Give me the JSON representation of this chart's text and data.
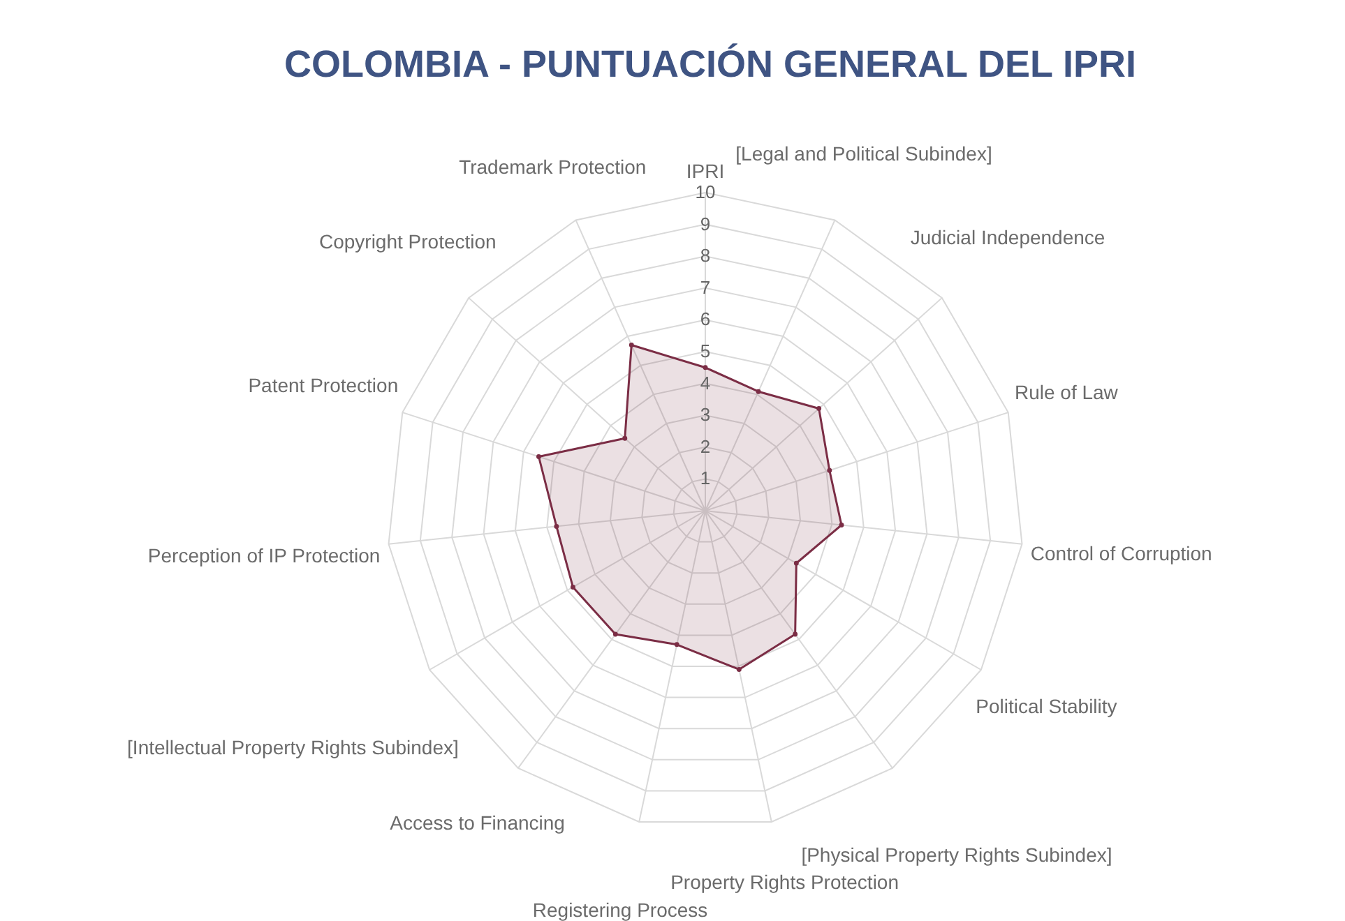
{
  "chart_data": {
    "type": "radar",
    "title": "COLOMBIA - PUNTUACIÓN GENERAL DEL IPRI",
    "categories": [
      "IPRI",
      "[Legal and Political Subindex]",
      "Judicial Independence",
      "Rule of Law",
      "Control of Corruption",
      "Political Stability",
      "[Physical Property Rights Subindex]",
      "Property Rights Protection",
      "Registering Process",
      "Access to Financing",
      "[Intellectual Property Rights Subindex]",
      "Perception of IP Protection",
      "Patent Protection",
      "Copyright Protection",
      "Trademark Protection"
    ],
    "series": [
      {
        "color": "#7b2d45",
        "values": [
          4.5,
          4.1,
          4.8,
          4.1,
          4.3,
          3.3,
          4.8,
          5.1,
          4.3,
          4.8,
          4.8,
          4.7,
          5.5,
          3.4,
          5.7
        ]
      }
    ],
    "ylim": [
      0,
      10
    ],
    "yticks": [
      1,
      2,
      3,
      4,
      5,
      6,
      7,
      8,
      9,
      10
    ],
    "grid": true,
    "marker": "circle"
  }
}
